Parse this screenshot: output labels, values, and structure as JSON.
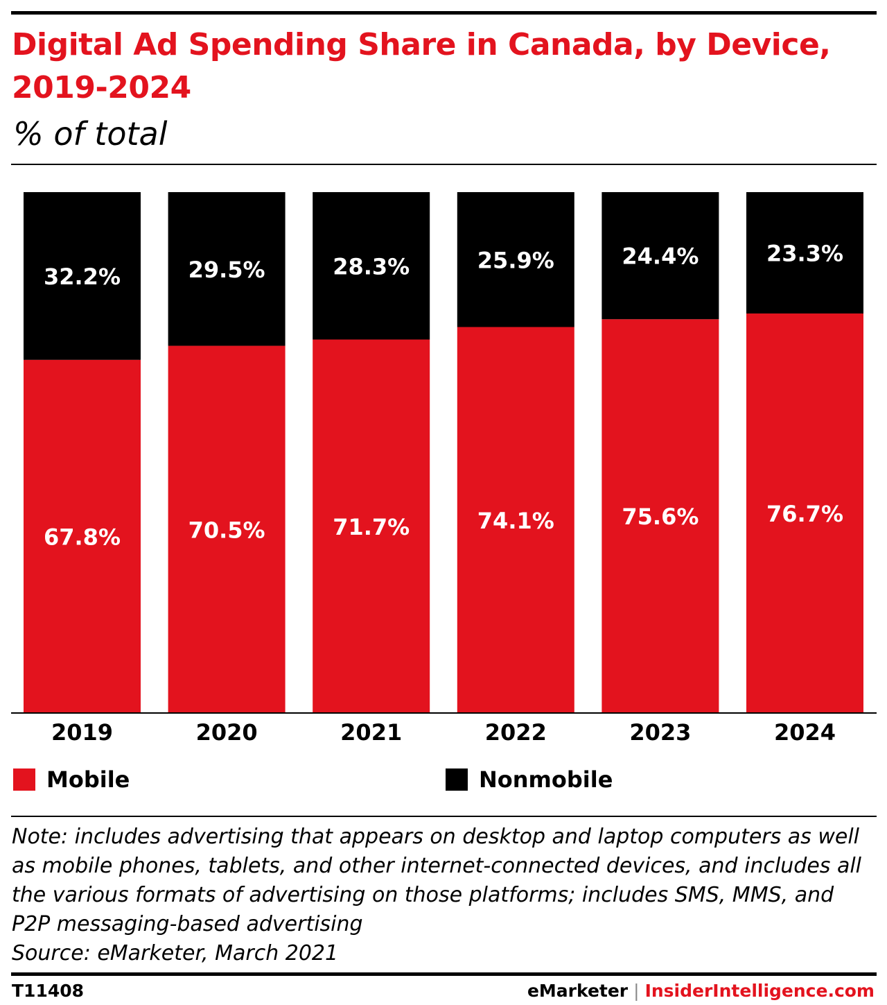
{
  "header": {
    "title": "Digital Ad Spending Share in Canada, by Device, 2019-2024",
    "subtitle": "% of total"
  },
  "chart_data": {
    "type": "bar",
    "stacked": true,
    "title": "Digital Ad Spending Share in Canada, by Device, 2019-2024",
    "subtitle": "% of total",
    "xlabel": "",
    "ylabel": "",
    "ylim": [
      0,
      100
    ],
    "grid": false,
    "categories": [
      "2019",
      "2020",
      "2021",
      "2022",
      "2023",
      "2024"
    ],
    "series": [
      {
        "name": "Mobile",
        "color": "#e3131e",
        "values": [
          67.8,
          70.5,
          71.7,
          74.1,
          75.6,
          76.7
        ],
        "labels": [
          "67.8%",
          "70.5%",
          "71.7%",
          "74.1%",
          "75.6%",
          "76.7%"
        ]
      },
      {
        "name": "Nonmobile",
        "color": "#000000",
        "values": [
          32.2,
          29.5,
          28.3,
          25.9,
          24.4,
          23.3
        ],
        "labels": [
          "32.2%",
          "29.5%",
          "28.3%",
          "25.9%",
          "24.4%",
          "23.3%"
        ]
      }
    ],
    "legend_position": "bottom"
  },
  "legend": {
    "items": [
      {
        "label": "Mobile",
        "color": "#e3131e"
      },
      {
        "label": "Nonmobile",
        "color": "#000000"
      }
    ]
  },
  "note": {
    "line1": "Note: includes advertising that appears on desktop and laptop computers as well as mobile phones, tablets, and other internet-connected devices, and includes all the various formats of advertising on those platforms; includes SMS, MMS, and P2P messaging-based advertising",
    "source": "Source: eMarketer, March 2021"
  },
  "footer": {
    "chart_id": "T11408",
    "brand_left": "eMarketer",
    "brand_sep": "|",
    "brand_right": "InsiderIntelligence.com"
  }
}
